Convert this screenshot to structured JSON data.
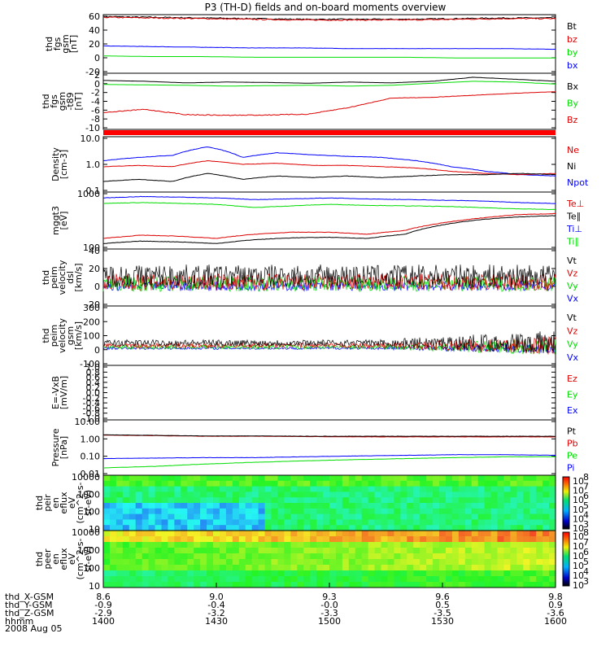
{
  "title": "P3 (TH-D) fields and on-board moments overview",
  "date": "2008 Aug 05",
  "colors": {
    "black": "#000000",
    "red": "#dd0000",
    "green": "#00dd00",
    "blue": "#0000ff"
  },
  "chart_data": {
    "type": "line",
    "panels": [
      {
        "id": "fgs-gsm",
        "ylabel": [
          "thd",
          "fgs",
          "gsm",
          "[nT]"
        ],
        "ticks": [
          "60",
          "40",
          "20",
          "0",
          "-20"
        ],
        "legend": [
          {
            "name": "Bt",
            "color": "black"
          },
          {
            "name": "bz",
            "color": "red"
          },
          {
            "name": "by",
            "color": "green"
          },
          {
            "name": "bx",
            "color": "blue"
          }
        ],
        "ylim": [
          -25,
          63
        ],
        "series": [
          {
            "name": "Bt",
            "color": "black",
            "values": [
              60,
              59,
              58,
              57,
              56,
              56,
              56,
              57,
              58,
              58
            ]
          },
          {
            "name": "bz",
            "color": "red",
            "values": [
              59,
              58,
              57,
              56,
              55,
              55,
              55,
              56,
              57,
              57
            ]
          },
          {
            "name": "bx",
            "color": "blue",
            "values": [
              16,
              15,
              14,
              13,
              13,
              12,
              12,
              12,
              12,
              11
            ]
          },
          {
            "name": "by",
            "color": "green",
            "values": [
              1,
              0,
              0,
              -1,
              -1,
              -1,
              -1,
              -2,
              -2,
              -2
            ]
          }
        ]
      },
      {
        "id": "fgs-gsm-minus-t89",
        "ylabel": [
          "thd",
          "fgs",
          "gsm",
          "-t89",
          "[nT]"
        ],
        "ticks": [
          "2",
          "0",
          "-2",
          "-4",
          "-6",
          "-8",
          "-10"
        ],
        "legend": [
          {
            "name": "Bx",
            "color": "black"
          },
          {
            "name": "By",
            "color": "green"
          },
          {
            "name": "Bz",
            "color": "red"
          }
        ],
        "ylim": [
          -11,
          3
        ],
        "series": [
          {
            "name": "Bx",
            "color": "black",
            "values": [
              1.2,
              1,
              0.6,
              0.8,
              0.7,
              0.5,
              0.8,
              0.6,
              1,
              2,
              1.5,
              1
            ]
          },
          {
            "name": "By",
            "color": "green",
            "values": [
              0.2,
              0.1,
              0,
              -0.2,
              -0.1,
              0,
              -0.2,
              0,
              0.5,
              1,
              0.8,
              0.3
            ]
          },
          {
            "name": "Bz",
            "color": "red",
            "values": [
              -6.8,
              -6,
              -7.3,
              -7.5,
              -7.4,
              -7.2,
              -5.5,
              -3.2,
              -3,
              -2.5,
              -2,
              -1.6
            ]
          }
        ]
      },
      {
        "id": "density",
        "ylabel": [
          "Density",
          "[cm-3]"
        ],
        "ticks": [
          "10.0",
          "1.0",
          "0.1"
        ],
        "legend": [
          {
            "name": "Ne",
            "color": "red"
          },
          {
            "name": "Ni",
            "color": "black"
          },
          {
            "name": "Npot",
            "color": "blue"
          }
        ],
        "ylim": [
          0.1,
          12
        ],
        "scale": "log",
        "series": [
          {
            "name": "Npot",
            "color": "blue",
            "values": [
              1.5,
              2,
              2.4,
              5,
              2,
              3,
              2.5,
              2.2,
              2,
              1.5,
              0.9,
              0.6,
              0.45,
              0.4
            ]
          },
          {
            "name": "Ne",
            "color": "red",
            "values": [
              0.9,
              1,
              0.9,
              1.5,
              1.1,
              1.2,
              1,
              1,
              0.9,
              0.8,
              0.6,
              0.5,
              0.45,
              0.5
            ]
          },
          {
            "name": "Ni",
            "color": "black",
            "values": [
              0.25,
              0.3,
              0.25,
              0.5,
              0.3,
              0.4,
              0.35,
              0.4,
              0.35,
              0.4,
              0.45,
              0.45,
              0.5,
              0.45
            ]
          }
        ]
      },
      {
        "id": "temperature",
        "ylabel": [
          "mggt3",
          "[eV]"
        ],
        "ticks": [
          "1000",
          "100"
        ],
        "legend": [
          {
            "name": "Te⊥",
            "color": "red"
          },
          {
            "name": "Te∥",
            "color": "black"
          },
          {
            "name": "Ti⊥",
            "color": "blue"
          },
          {
            "name": "Ti∥",
            "color": "green"
          }
        ],
        "ylim": [
          100,
          7000
        ],
        "scale": "log",
        "series": [
          {
            "name": "Ti⊥",
            "color": "blue",
            "values": [
              4500,
              5000,
              4800,
              4500,
              4000,
              4200,
              4500,
              4200,
              4000,
              3800,
              3600,
              3200,
              3000
            ]
          },
          {
            "name": "Ti∥",
            "color": "green",
            "values": [
              3000,
              3200,
              3000,
              2800,
              2200,
              2500,
              2800,
              2600,
              2500,
              2400,
              2200,
              2000,
              1900
            ]
          },
          {
            "name": "Te⊥",
            "color": "red",
            "values": [
              220,
              280,
              260,
              220,
              300,
              350,
              350,
              300,
              400,
              700,
              1000,
              1300,
              1400
            ]
          },
          {
            "name": "Te∥",
            "color": "black",
            "values": [
              150,
              180,
              170,
              150,
              200,
              230,
              240,
              220,
              300,
              600,
              900,
              1100,
              1200
            ]
          }
        ]
      },
      {
        "id": "peim-velocity-dsl",
        "ylabel": [
          "thd",
          "peim",
          "velocity",
          "dsl",
          "[km/s]"
        ],
        "ticks": [
          "40",
          "20",
          "0",
          "-20"
        ],
        "legend": [
          {
            "name": "Vt",
            "color": "black"
          },
          {
            "name": "Vz",
            "color": "red"
          },
          {
            "name": "Vy",
            "color": "green"
          },
          {
            "name": "Vx",
            "color": "blue"
          }
        ],
        "ylim": [
          -30,
          42
        ]
      },
      {
        "id": "peim-velocity-gsm",
        "ylabel": [
          "thd",
          "peim",
          "velocity",
          "gsm",
          "[km/s]"
        ],
        "ticks": [
          "300",
          "200",
          "100",
          "0",
          "-100"
        ],
        "legend": [
          {
            "name": "Vt",
            "color": "black"
          },
          {
            "name": "Vz",
            "color": "red"
          },
          {
            "name": "Vy",
            "color": "green"
          },
          {
            "name": "Vx",
            "color": "blue"
          }
        ],
        "ylim": [
          -130,
          320
        ]
      },
      {
        "id": "e-field",
        "ylabel": [
          "E=-VxB",
          "[mV/m]"
        ],
        "ticks": [
          "1.0",
          "0.8",
          "0.6",
          "0.4",
          "0.2",
          "0.0",
          "-0.2",
          "-0.4",
          "-0.6",
          "-0.8",
          "-1.0"
        ],
        "legend": [
          {
            "name": "Ez",
            "color": "red"
          },
          {
            "name": "Ey",
            "color": "green"
          },
          {
            "name": "Ex",
            "color": "blue"
          }
        ],
        "ylim": [
          -1,
          1
        ]
      },
      {
        "id": "pressure",
        "ylabel": [
          "Pressure",
          "[nPa]"
        ],
        "ticks": [
          "10.00",
          "1.00",
          "0.10",
          "0.01"
        ],
        "legend": [
          {
            "name": "Pt",
            "color": "black"
          },
          {
            "name": "Pb",
            "color": "red"
          },
          {
            "name": "Pe",
            "color": "green"
          },
          {
            "name": "Pi",
            "color": "blue"
          }
        ],
        "ylim": [
          0.01,
          10
        ],
        "scale": "log",
        "series": [
          {
            "name": "Pb",
            "color": "red",
            "values": [
              1.5,
              1.4,
              1.3,
              1.3,
              1.25,
              1.2,
              1.2,
              1.2,
              1.2,
              1.2
            ]
          },
          {
            "name": "Pt",
            "color": "black",
            "values": [
              1.55,
              1.45,
              1.35,
              1.35,
              1.3,
              1.3,
              1.3,
              1.3,
              1.3,
              1.3
            ]
          },
          {
            "name": "Pi",
            "color": "blue",
            "values": [
              0.08,
              0.085,
              0.09,
              0.09,
              0.1,
              0.11,
              0.12,
              0.13,
              0.13,
              0.12
            ]
          },
          {
            "name": "Pe",
            "color": "green",
            "values": [
              0.025,
              0.03,
              0.04,
              0.05,
              0.06,
              0.07,
              0.08,
              0.09,
              0.1,
              0.1
            ]
          }
        ]
      },
      {
        "id": "peir-en-eflux",
        "ylabel": [
          "thd",
          "peir",
          "en",
          "eflux",
          "eV",
          "(cm^2-s-",
          "sr-eV)"
        ],
        "ticks": [
          "10000",
          "1000",
          "100",
          "10"
        ],
        "colorbar": [
          "10",
          "10",
          "10",
          "10",
          "10",
          "10"
        ],
        "colorbar_exp": [
          "8",
          "7",
          "6",
          "5",
          "4",
          "3"
        ]
      },
      {
        "id": "peer-en-eflux",
        "ylabel": [
          "thd",
          "peer",
          "en",
          "eflux",
          "eV",
          "(cm^2-s-",
          "sr-eV)"
        ],
        "ticks": [
          "10000",
          "1000",
          "100",
          "10"
        ],
        "colorbar": [
          "10",
          "10",
          "10",
          "10",
          "10",
          "10"
        ],
        "colorbar_exp": [
          "8",
          "7",
          "6",
          "5",
          "4",
          "3"
        ]
      }
    ],
    "xaxis": {
      "labels": [
        "thd_X-GSM",
        "thd_Y-GSM",
        "thd_Z-GSM",
        "hhmm"
      ],
      "rows": [
        [
          "8.6",
          "9.0",
          "9.3",
          "9.6",
          "9.8"
        ],
        [
          "-0.9",
          "-0.4",
          "-0.0",
          "0.5",
          "0.9"
        ],
        [
          "-2.9",
          "-3.2",
          "-3.3",
          "-3.5",
          "-3.6"
        ],
        [
          "1400",
          "1430",
          "1500",
          "1530",
          "1600"
        ]
      ]
    }
  }
}
